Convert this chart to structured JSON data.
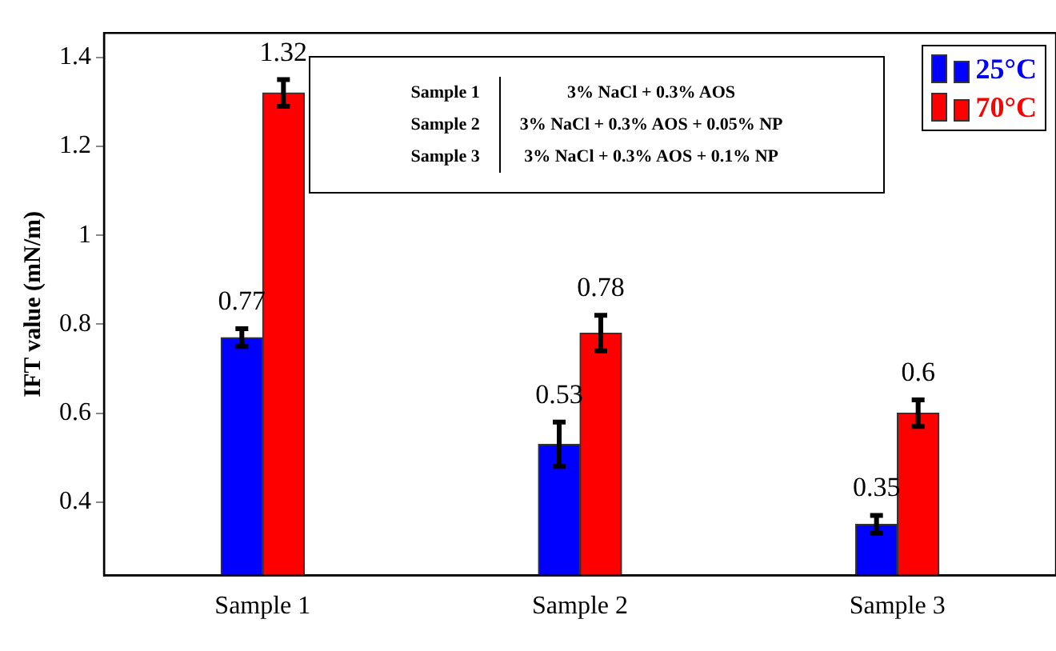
{
  "chart_data": {
    "type": "bar",
    "ylabel": "IFT value (mN/m)",
    "categories": [
      "Sample 1",
      "Sample 2",
      "Sample 3"
    ],
    "series": [
      {
        "name": "25°C",
        "color": "#0000ff",
        "values": [
          0.77,
          0.53,
          0.35
        ],
        "errors": [
          0.02,
          0.05,
          0.02
        ]
      },
      {
        "name": "70°C",
        "color": "#ff0000",
        "values": [
          1.32,
          0.78,
          0.6
        ],
        "errors": [
          0.03,
          0.04,
          0.03
        ]
      }
    ],
    "ylim": [
      0.235,
      1.455
    ],
    "yticks": [
      0.4,
      0.6,
      0.8,
      1,
      1.2,
      1.4
    ],
    "data_labels": true,
    "grid": false,
    "legend": "top right",
    "annotations": [
      "Sample 1",
      "3% NaCl + 0.3% AOS",
      "Sample 2",
      "3% NaCl + 0.3% AOS + 0.05% NP",
      "Sample 3",
      "3% NaCl + 0.3% AOS + 0.1% NP"
    ]
  }
}
